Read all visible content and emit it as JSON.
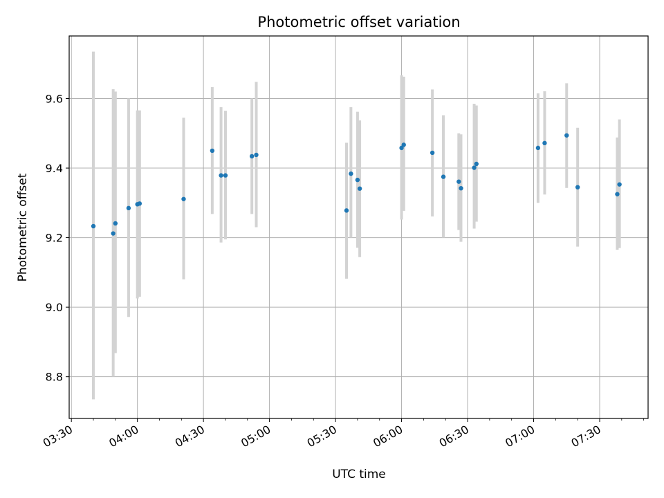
{
  "chart_data": {
    "type": "scatter",
    "title": "Photometric offset variation",
    "xlabel": "UTC time",
    "ylabel": "Photometric offset",
    "x_tick_labels": [
      "03:30",
      "04:00",
      "04:30",
      "05:00",
      "05:30",
      "06:00",
      "06:30",
      "07:00",
      "07:30"
    ],
    "y_tick_labels": [
      "8.8",
      "9.0",
      "9.2",
      "9.4",
      "9.6"
    ],
    "y_ticks": [
      8.8,
      9.0,
      9.2,
      9.4,
      9.6
    ],
    "xlim": [
      "03:29",
      "07:52"
    ],
    "ylim": [
      8.68,
      9.78
    ],
    "grid": true,
    "colors": {
      "points": "#1f77b4",
      "error_bars": "#d3d3d3",
      "grid": "#b0b0b0"
    },
    "points": [
      {
        "x": "03:40",
        "y": 9.233,
        "low": 8.735,
        "high": 9.735
      },
      {
        "x": "03:49",
        "y": 9.212,
        "low": 8.8,
        "high": 9.627
      },
      {
        "x": "03:50",
        "y": 9.241,
        "low": 8.868,
        "high": 9.62
      },
      {
        "x": "03:56",
        "y": 9.285,
        "low": 8.972,
        "high": 9.6
      },
      {
        "x": "04:00",
        "y": 9.296,
        "low": 9.025,
        "high": 9.566
      },
      {
        "x": "04:01",
        "y": 9.298,
        "low": 9.03,
        "high": 9.566
      },
      {
        "x": "04:21",
        "y": 9.311,
        "low": 9.08,
        "high": 9.545
      },
      {
        "x": "04:34",
        "y": 9.45,
        "low": 9.268,
        "high": 9.633
      },
      {
        "x": "04:38",
        "y": 9.379,
        "low": 9.186,
        "high": 9.575
      },
      {
        "x": "04:40",
        "y": 9.379,
        "low": 9.195,
        "high": 9.565
      },
      {
        "x": "04:52",
        "y": 9.434,
        "low": 9.268,
        "high": 9.6
      },
      {
        "x": "04:54",
        "y": 9.438,
        "low": 9.23,
        "high": 9.648
      },
      {
        "x": "05:35",
        "y": 9.278,
        "low": 9.082,
        "high": 9.473
      },
      {
        "x": "05:37",
        "y": 9.384,
        "low": 9.2,
        "high": 9.575
      },
      {
        "x": "05:40",
        "y": 9.366,
        "low": 9.171,
        "high": 9.562
      },
      {
        "x": "05:41",
        "y": 9.341,
        "low": 9.144,
        "high": 9.537
      },
      {
        "x": "06:00",
        "y": 9.458,
        "low": 9.252,
        "high": 9.667
      },
      {
        "x": "06:01",
        "y": 9.467,
        "low": 9.277,
        "high": 9.663
      },
      {
        "x": "06:14",
        "y": 9.444,
        "low": 9.261,
        "high": 9.626
      },
      {
        "x": "06:19",
        "y": 9.375,
        "low": 9.2,
        "high": 9.552
      },
      {
        "x": "06:26",
        "y": 9.361,
        "low": 9.222,
        "high": 9.5
      },
      {
        "x": "06:27",
        "y": 9.342,
        "low": 9.188,
        "high": 9.497
      },
      {
        "x": "06:33",
        "y": 9.401,
        "low": 9.226,
        "high": 9.585
      },
      {
        "x": "06:34",
        "y": 9.412,
        "low": 9.246,
        "high": 9.58
      },
      {
        "x": "07:02",
        "y": 9.458,
        "low": 9.3,
        "high": 9.615
      },
      {
        "x": "07:05",
        "y": 9.472,
        "low": 9.324,
        "high": 9.621
      },
      {
        "x": "07:15",
        "y": 9.494,
        "low": 9.343,
        "high": 9.644
      },
      {
        "x": "07:20",
        "y": 9.345,
        "low": 9.174,
        "high": 9.516
      },
      {
        "x": "07:38",
        "y": 9.325,
        "low": 9.165,
        "high": 9.488
      },
      {
        "x": "07:39",
        "y": 9.353,
        "low": 9.17,
        "high": 9.54
      }
    ]
  }
}
